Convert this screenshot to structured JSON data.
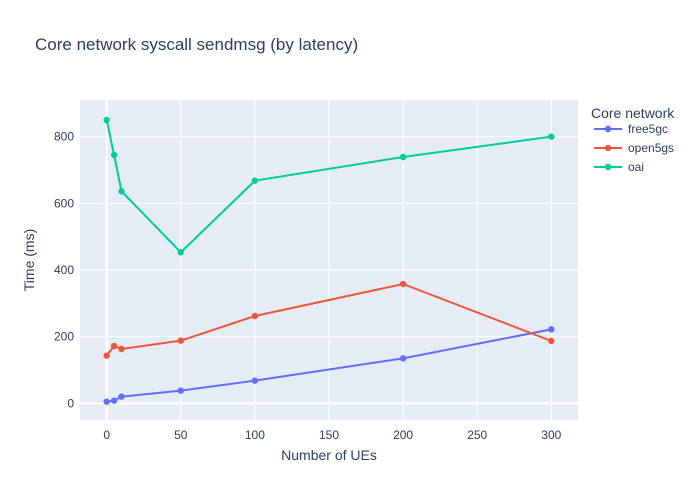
{
  "chart_data": {
    "type": "line",
    "title": "Core network syscall sendmsg (by latency)",
    "xlabel": "Number of UEs",
    "ylabel": "Time (ms)",
    "x": [
      0,
      5,
      10,
      50,
      100,
      200,
      300
    ],
    "xlim": [
      -18,
      318
    ],
    "ylim": [
      -50,
      910
    ],
    "xticks": [
      0,
      50,
      100,
      150,
      200,
      250,
      300
    ],
    "yticks": [
      0,
      200,
      400,
      600,
      800
    ],
    "grid": true,
    "legend": {
      "title": "Core network",
      "placement": "right"
    },
    "series": [
      {
        "name": "free5gc",
        "color": "#636efa",
        "values": [
          5,
          8,
          20,
          38,
          68,
          135,
          222
        ]
      },
      {
        "name": "open5gs",
        "color": "#ef553b",
        "values": [
          143,
          172,
          163,
          188,
          262,
          358,
          187
        ]
      },
      {
        "name": "oai",
        "color": "#00cc96",
        "values": [
          850,
          745,
          636,
          453,
          668,
          739,
          800
        ]
      }
    ]
  }
}
